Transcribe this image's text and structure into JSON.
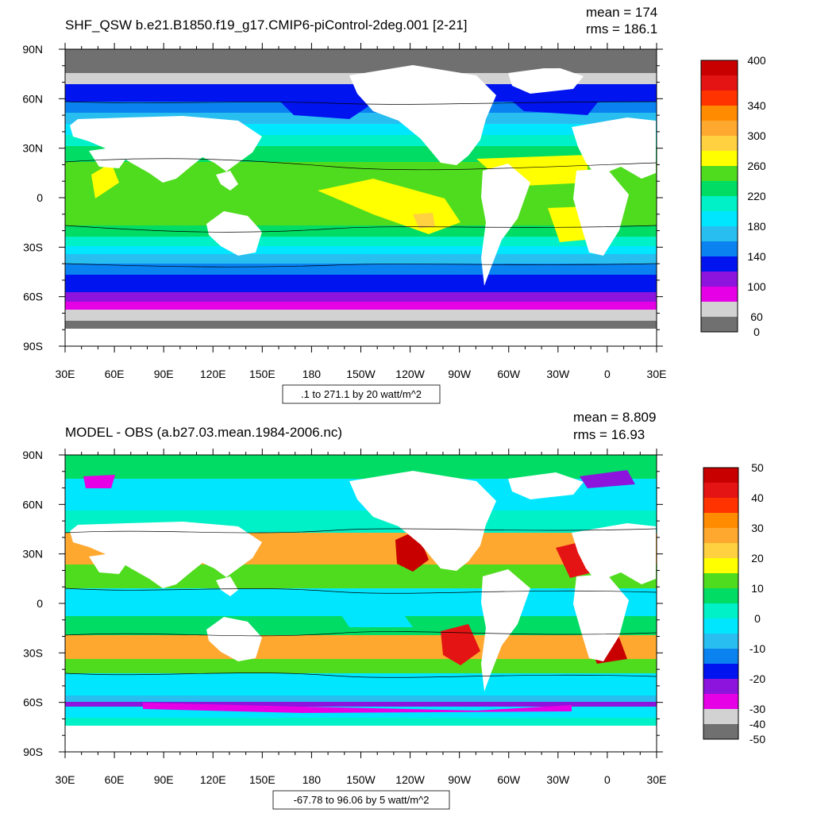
{
  "panels": [
    {
      "id": "top",
      "title": "SHF_QSW b.e21.B1850.f19_g17.CMIP6-piControl-2deg.001 [2-21]",
      "stats": [
        "mean = 174",
        "rms = 186.1"
      ],
      "range_label": ".1 to 271.1 by 20 watt/m^2",
      "colorbar": {
        "labels": [
          "400",
          "340",
          "300",
          "260",
          "220",
          "180",
          "140",
          "100",
          "60",
          "0"
        ],
        "colors": [
          "#c80000",
          "#e41414",
          "#ff3300",
          "#ff8c00",
          "#ffa830",
          "#ffd040",
          "#ffff00",
          "#50dc1e",
          "#00dc64",
          "#00f0c8",
          "#00e6ff",
          "#28bef0",
          "#0a82f0",
          "#0014f0",
          "#8c14dc",
          "#e600e6",
          "#d2d2d2",
          "#707070"
        ]
      }
    },
    {
      "id": "bottom",
      "title": "MODEL - OBS (a.b27.03.mean.1984-2006.nc)",
      "stats": [
        "mean = 8.809",
        "rms = 16.93"
      ],
      "range_label": "-67.78 to 96.06 by 5 watt/m^2",
      "colorbar": {
        "labels": [
          "50",
          "40",
          "30",
          "20",
          "10",
          "0",
          "-10",
          "-20",
          "-30",
          "-40",
          "-50"
        ],
        "colors": [
          "#c80000",
          "#e41414",
          "#ff3300",
          "#ff8c00",
          "#ffa830",
          "#ffd040",
          "#ffff00",
          "#50dc1e",
          "#00dc64",
          "#00f0c8",
          "#00e6ff",
          "#28bef0",
          "#0a82f0",
          "#0014f0",
          "#8c14dc",
          "#e600e6",
          "#d2d2d2",
          "#707070"
        ]
      }
    }
  ],
  "lat_labels": [
    "90N",
    "60N",
    "30N",
    "0",
    "30S",
    "60S",
    "90S"
  ],
  "lon_labels": [
    "30E",
    "60E",
    "90E",
    "120E",
    "150E",
    "180",
    "150W",
    "120W",
    "90W",
    "60W",
    "30W",
    "0",
    "30E"
  ]
}
